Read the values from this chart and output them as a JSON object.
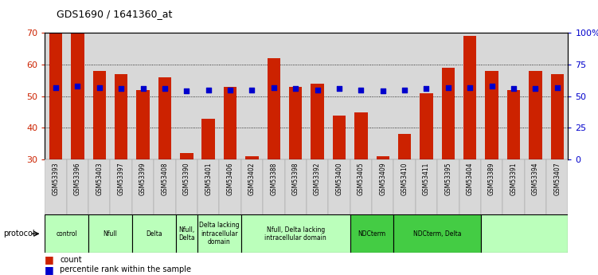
{
  "title": "GDS1690 / 1641360_at",
  "samples": [
    "GSM53393",
    "GSM53396",
    "GSM53403",
    "GSM53397",
    "GSM53399",
    "GSM53408",
    "GSM53390",
    "GSM53401",
    "GSM53406",
    "GSM53402",
    "GSM53388",
    "GSM53398",
    "GSM53392",
    "GSM53400",
    "GSM53405",
    "GSM53409",
    "GSM53410",
    "GSM53411",
    "GSM53395",
    "GSM53404",
    "GSM53389",
    "GSM53391",
    "GSM53394",
    "GSM53407"
  ],
  "counts": [
    70,
    70,
    58,
    57,
    52,
    56,
    32,
    43,
    53,
    31,
    62,
    53,
    54,
    44,
    45,
    31,
    38,
    51,
    59,
    69,
    58,
    52,
    58,
    57
  ],
  "percentiles": [
    57,
    58,
    57,
    56,
    56,
    56,
    54,
    55,
    55,
    55,
    57,
    56,
    55,
    56,
    55,
    54,
    55,
    56,
    57,
    57,
    58,
    56,
    56,
    57
  ],
  "ylim_left": [
    30,
    70
  ],
  "ylim_right": [
    0,
    100
  ],
  "yticks_left": [
    30,
    40,
    50,
    60,
    70
  ],
  "yticks_right": [
    0,
    25,
    50,
    75,
    100
  ],
  "ytick_labels_right": [
    "0",
    "25",
    "50",
    "75",
    "100%"
  ],
  "bar_color": "#cc2200",
  "dot_color": "#0000cc",
  "plot_bg_color": "#d8d8d8",
  "protocol_light": "#bbffbb",
  "protocol_dark": "#44cc44",
  "legend_count_label": "count",
  "legend_pct_label": "percentile rank within the sample",
  "left_tick_color": "#cc2200",
  "right_axis_color": "#0000cc",
  "grid_color": "black",
  "protocols": [
    {
      "label": "control",
      "cols": [
        0,
        1
      ],
      "color": "#bbffbb"
    },
    {
      "label": "Nfull",
      "cols": [
        2,
        3
      ],
      "color": "#bbffbb"
    },
    {
      "label": "Delta",
      "cols": [
        4,
        5
      ],
      "color": "#bbffbb"
    },
    {
      "label": "Nfull,\nDelta",
      "cols": [
        6
      ],
      "color": "#bbffbb"
    },
    {
      "label": "Delta lacking\nintracellular\ndomain",
      "cols": [
        7,
        8
      ],
      "color": "#bbffbb"
    },
    {
      "label": "Nfull, Delta lacking\nintracellular domain",
      "cols": [
        9,
        10,
        11,
        12,
        13
      ],
      "color": "#bbffbb"
    },
    {
      "label": "NDCterm",
      "cols": [
        14,
        15
      ],
      "color": "#44cc44"
    },
    {
      "label": "NDCterm, Delta",
      "cols": [
        16,
        17,
        18,
        19
      ],
      "color": "#44cc44"
    },
    {
      "label": "",
      "cols": [
        20,
        21,
        22,
        23
      ],
      "color": "#bbffbb"
    }
  ]
}
